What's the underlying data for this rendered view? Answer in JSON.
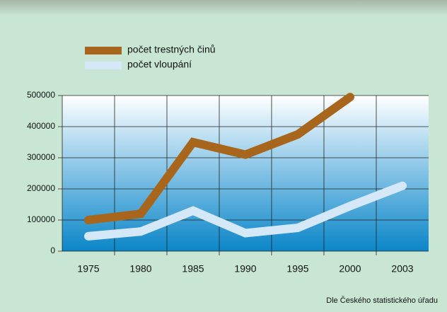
{
  "chart_data": {
    "type": "line",
    "categories": [
      "1975",
      "1980",
      "1985",
      "1990",
      "1995",
      "2000",
      "2003"
    ],
    "series": [
      {
        "name": "počet trestných činů",
        "color": "#a8661c",
        "values": [
          100000,
          120000,
          350000,
          310000,
          375000,
          495000,
          null
        ]
      },
      {
        "name": "počet vloupání",
        "color": "#d4e8f8",
        "values": [
          48000,
          63000,
          130000,
          58000,
          75000,
          145000,
          210000
        ]
      }
    ],
    "ylim": [
      0,
      500000
    ],
    "yticks": [
      0,
      100000,
      200000,
      300000,
      400000,
      500000
    ],
    "grid": true,
    "source": "Dle Českého statistického úřadu"
  }
}
